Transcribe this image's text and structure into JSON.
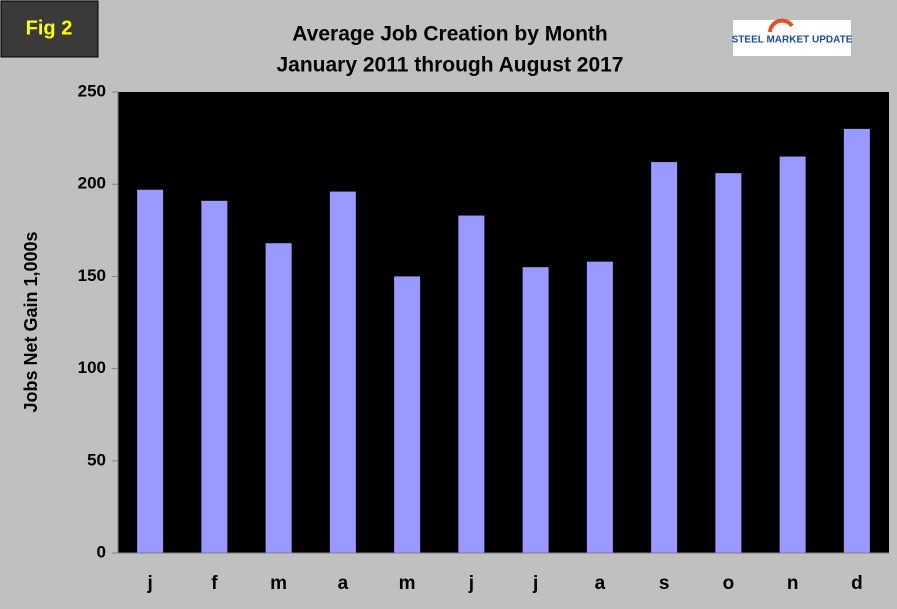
{
  "badge": "Fig 2",
  "logo": "STEEL MARKET UPDATE",
  "chart_data": {
    "type": "bar",
    "title": [
      "Average Job Creation by Month",
      "January 2011 through August 2017"
    ],
    "y_label": "Jobs Net Gain 1,000s",
    "categories": [
      "j",
      "f",
      "m",
      "a",
      "m",
      "j",
      "j",
      "a",
      "s",
      "o",
      "n",
      "d"
    ],
    "values": [
      197,
      191,
      168,
      196,
      150,
      183,
      155,
      158,
      212,
      206,
      215,
      230
    ],
    "color": "#9999ff",
    "ylim": [
      0,
      250
    ],
    "yticks": [
      0,
      50,
      100,
      150,
      200,
      250
    ],
    "grid": false
  }
}
